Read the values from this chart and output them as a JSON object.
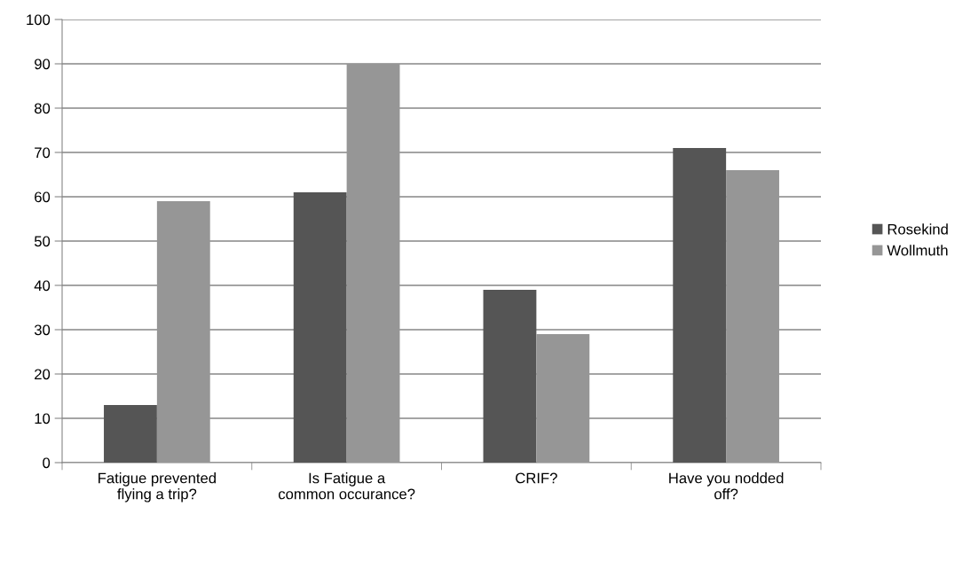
{
  "chart_data": {
    "type": "bar",
    "categories": [
      "Fatigue prevented flying a trip?",
      "Is Fatigue a common occurance?",
      "CRIF?",
      "Have you nodded off?"
    ],
    "series": [
      {
        "name": "Rosekind",
        "color": "#555555",
        "values": [
          13,
          61,
          39,
          71
        ]
      },
      {
        "name": "Wollmuth",
        "color": "#969696",
        "values": [
          59,
          90,
          29,
          66
        ]
      }
    ],
    "ylim": [
      0,
      100
    ],
    "yticks": [
      0,
      10,
      20,
      30,
      40,
      50,
      60,
      70,
      80,
      90,
      100
    ],
    "grid": "y",
    "legend": "right"
  }
}
